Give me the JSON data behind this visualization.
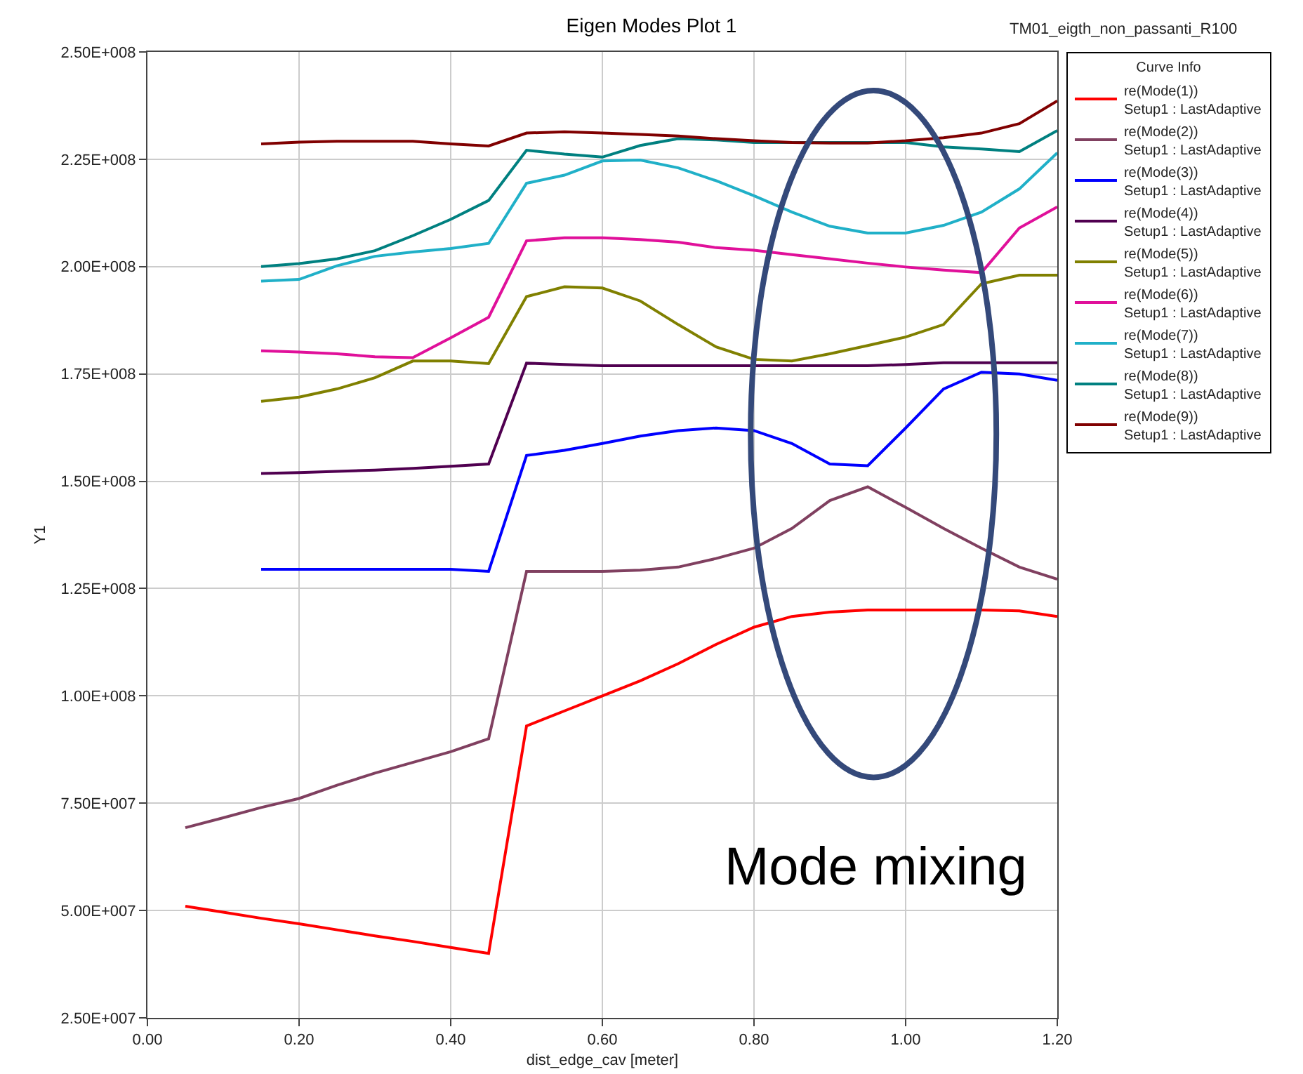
{
  "chart_data": {
    "type": "line",
    "title": "Eigen Modes Plot 1",
    "xlabel": "dist_edge_cav [meter]",
    "ylabel": "Y1",
    "legend_title": "Curve Info",
    "legend": "right",
    "grid": true,
    "annotations": [
      "TM01_eigth_non_passanti_R100",
      "Mode mixing"
    ],
    "xlim": [
      0,
      1.2
    ],
    "xticks": [
      {
        "value": 0,
        "label": "0.00"
      },
      {
        "value": 0.2,
        "label": "0.20"
      },
      {
        "value": 0.4,
        "label": "0.40"
      },
      {
        "value": 0.6,
        "label": "0.60"
      },
      {
        "value": 0.8,
        "label": "0.80"
      },
      {
        "value": 1,
        "label": "1.00"
      },
      {
        "value": 1.2,
        "label": "1.20"
      }
    ],
    "ylim": [
      25000000,
      250000000
    ],
    "yticks": [
      {
        "value": 25000000,
        "label": "2.50E+007"
      },
      {
        "value": 50000000,
        "label": "5.00E+007"
      },
      {
        "value": 75000000,
        "label": "7.50E+007"
      },
      {
        "value": 100000000,
        "label": "1.00E+008"
      },
      {
        "value": 125000000,
        "label": "1.25E+008"
      },
      {
        "value": 150000000,
        "label": "1.50E+008"
      },
      {
        "value": 175000000,
        "label": "1.75E+008"
      },
      {
        "value": 200000000,
        "label": "2.00E+008"
      },
      {
        "value": 225000000,
        "label": "2.25E+008"
      },
      {
        "value": 250000000,
        "label": "2.50E+008"
      }
    ],
    "x": [
      0.05,
      0.1,
      0.15,
      0.2,
      0.25,
      0.3,
      0.35,
      0.4,
      0.45,
      0.5,
      0.55,
      0.6,
      0.65,
      0.7,
      0.75,
      0.8,
      0.85,
      0.9,
      0.95,
      1,
      1.05,
      1.1,
      1.15,
      1.2
    ],
    "series": [
      {
        "name": "re(Mode(1))\nSetup1 : LastAdaptive",
        "color": "#ff0000",
        "values": [
          51000000,
          49600000,
          48200000,
          46900000,
          45500000,
          44100000,
          42800000,
          41400000,
          40000000,
          93000000,
          96500000,
          100000000,
          103500000,
          107500000,
          112000000,
          116000000,
          118500000,
          119500000,
          120000000,
          120000000,
          120000000,
          120000000,
          119800000,
          118500000
        ]
      },
      {
        "name": "re(Mode(2))\nSetup1 : LastAdaptive",
        "color": "#804060",
        "values": [
          69300000,
          71600000,
          74000000,
          76100000,
          79200000,
          82000000,
          84500000,
          87000000,
          90000000,
          129000000,
          129000000,
          129000000,
          129300000,
          130000000,
          132000000,
          134400000,
          139000000,
          145500000,
          148700000,
          143900000,
          139000000,
          134400000,
          130000000,
          127200000
        ]
      },
      {
        "name": "re(Mode(3))\nSetup1 : LastAdaptive",
        "color": "#0000ff",
        "values": [
          null,
          null,
          129500000,
          129500000,
          129500000,
          129500000,
          129500000,
          129500000,
          129000000,
          156000000,
          157200000,
          158800000,
          160500000,
          161800000,
          162400000,
          161800000,
          158800000,
          154000000,
          153600000,
          162400000,
          171500000,
          175400000,
          175000000,
          173500000
        ]
      },
      {
        "name": "re(Mode(4))\nSetup1 : LastAdaptive",
        "color": "#500050",
        "values": [
          null,
          null,
          151800000,
          152000000,
          152300000,
          152600000,
          153000000,
          153500000,
          154000000,
          177500000,
          177200000,
          176900000,
          176900000,
          176900000,
          176900000,
          176900000,
          176900000,
          176900000,
          176900000,
          177200000,
          177600000,
          177600000,
          177600000,
          177600000
        ]
      },
      {
        "name": "re(Mode(5))\nSetup1 : LastAdaptive",
        "color": "#808000",
        "values": [
          null,
          null,
          168600000,
          169600000,
          171500000,
          174100000,
          178000000,
          178000000,
          177400000,
          193000000,
          195300000,
          195000000,
          192000000,
          186500000,
          181300000,
          178400000,
          178000000,
          179700000,
          181600000,
          183600000,
          186500000,
          196000000,
          198000000,
          198000000
        ]
      },
      {
        "name": "re(Mode(6))\nSetup1 : LastAdaptive",
        "color": "#e0109a",
        "values": [
          null,
          null,
          180400000,
          180100000,
          179700000,
          179000000,
          178800000,
          183400000,
          188200000,
          206000000,
          206700000,
          206700000,
          206300000,
          205700000,
          204400000,
          203800000,
          202800000,
          201800000,
          200800000,
          199900000,
          199200000,
          198600000,
          209000000,
          213900000
        ]
      },
      {
        "name": "re(Mode(7))\nSetup1 : LastAdaptive",
        "color": "#20b0c8",
        "values": [
          null,
          null,
          196600000,
          197000000,
          200200000,
          202400000,
          203400000,
          204200000,
          205400000,
          219400000,
          221300000,
          224600000,
          224800000,
          223000000,
          220000000,
          216500000,
          212700000,
          209400000,
          207800000,
          207800000,
          209600000,
          212700000,
          218100000,
          226500000
        ]
      },
      {
        "name": "re(Mode(8))\nSetup1 : LastAdaptive",
        "color": "#008080",
        "values": [
          null,
          null,
          200000000,
          200700000,
          201800000,
          203700000,
          207200000,
          211000000,
          215400000,
          227100000,
          226200000,
          225500000,
          228200000,
          229800000,
          229500000,
          228900000,
          228900000,
          228900000,
          228900000,
          228900000,
          227900000,
          227400000,
          226800000,
          231700000
        ]
      },
      {
        "name": "re(Mode(9))\nSetup1 : LastAdaptive",
        "color": "#800000",
        "values": [
          null,
          null,
          228600000,
          229000000,
          229200000,
          229200000,
          229200000,
          228600000,
          228100000,
          231100000,
          231400000,
          231100000,
          230800000,
          230400000,
          229800000,
          229300000,
          228900000,
          228800000,
          228800000,
          229300000,
          230000000,
          231100000,
          233300000,
          238600000
        ]
      }
    ]
  }
}
